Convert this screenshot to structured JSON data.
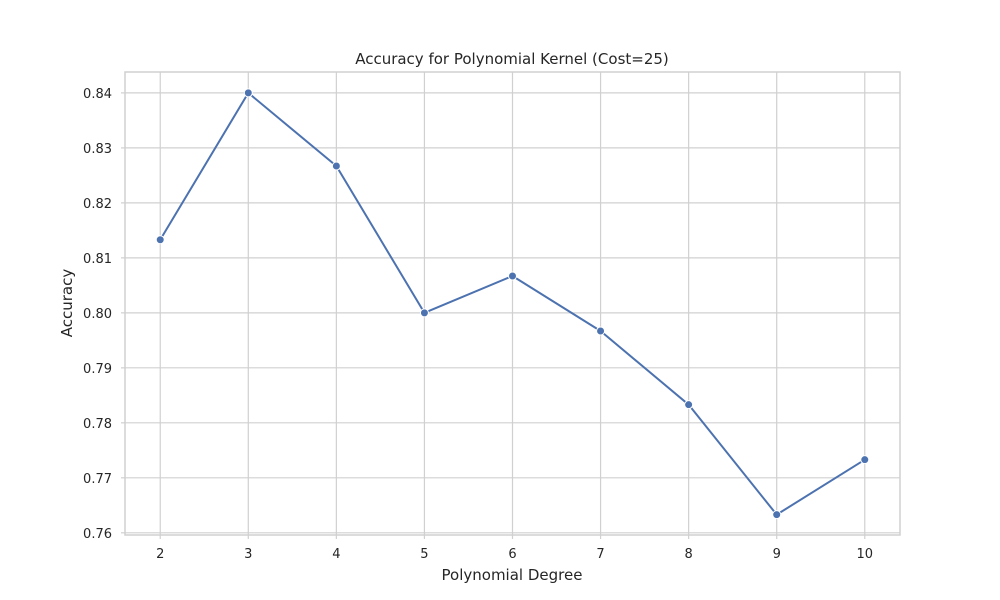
{
  "chart_data": {
    "type": "line",
    "title": "Accuracy for Polynomial Kernel (Cost=25)",
    "xlabel": "Polynomial Degree",
    "ylabel": "Accuracy",
    "x": [
      2,
      3,
      4,
      5,
      6,
      7,
      8,
      9,
      10
    ],
    "series": [
      {
        "values": [
          0.8133,
          0.84,
          0.8267,
          0.8,
          0.8067,
          0.7967,
          0.7833,
          0.7633,
          0.7733
        ],
        "color": "#4c72b0",
        "marker": "circle"
      }
    ],
    "xlim": [
      1.6,
      10.4
    ],
    "ylim": [
      0.7596,
      0.8438
    ],
    "x_ticks": [
      "2",
      "3",
      "4",
      "5",
      "6",
      "7",
      "8",
      "9",
      "10"
    ],
    "x_tick_values": [
      2,
      3,
      4,
      5,
      6,
      7,
      8,
      9,
      10
    ],
    "y_ticks": [
      "0.76",
      "0.77",
      "0.78",
      "0.79",
      "0.80",
      "0.81",
      "0.82",
      "0.83",
      "0.84"
    ],
    "y_tick_values": [
      0.76,
      0.77,
      0.78,
      0.79,
      0.8,
      0.81,
      0.82,
      0.83,
      0.84
    ],
    "grid": true,
    "legend": "none"
  }
}
